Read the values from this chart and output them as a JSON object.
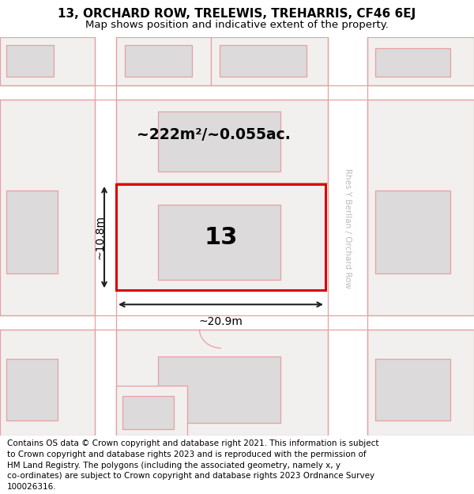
{
  "title": "13, ORCHARD ROW, TRELEWIS, TREHARRIS, CF46 6EJ",
  "subtitle": "Map shows position and indicative extent of the property.",
  "footer_lines": [
    "Contains OS data © Crown copyright and database right 2021. This information is subject",
    "to Crown copyright and database rights 2023 and is reproduced with the permission of",
    "HM Land Registry. The polygons (including the associated geometry, namely x, y",
    "co-ordinates) are subject to Crown copyright and database rights 2023 Ordnance Survey",
    "100026316."
  ],
  "map_bg": "#f2efef",
  "road_color": "#ffffff",
  "plot_line_color": "#e8a0a0",
  "highlight_color": "#dd0000",
  "highlight_fill": "#f2efef",
  "building_fill": "#dcdada",
  "road_label": "Rhes Y Berllan / Orchard Row",
  "area_label": "~222m²/~0.055ac.",
  "width_label": "~20.9m",
  "height_label": "~10.8m",
  "plot_number": "13",
  "title_fontsize": 11,
  "subtitle_fontsize": 9.5,
  "footer_fontsize": 7.5
}
